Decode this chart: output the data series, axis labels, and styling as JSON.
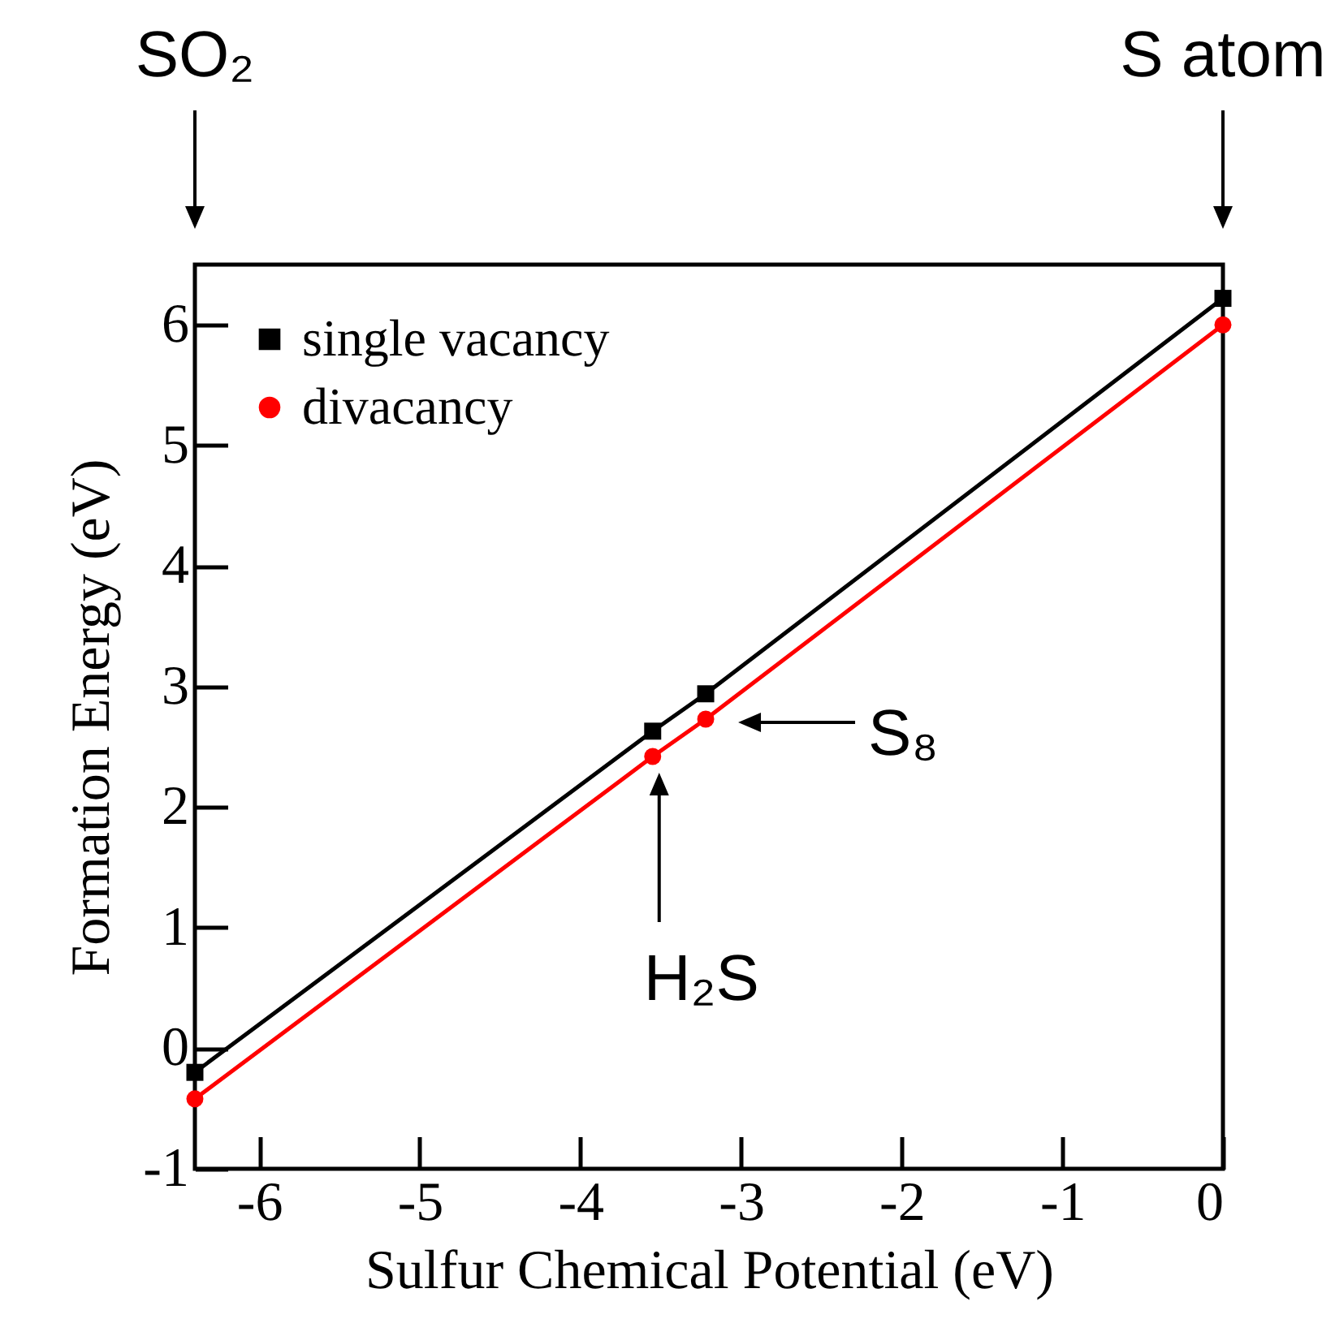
{
  "chart_data": {
    "type": "line",
    "xlabel": "Sulfur Chemical Potential (eV)",
    "ylabel": "Formation Energy (eV)",
    "x": [
      -6.4,
      -3.55,
      -3.22,
      0
    ],
    "series": [
      {
        "name": "single vacancy",
        "color": "#000000",
        "marker": "square",
        "values": [
          -0.2,
          2.63,
          2.94,
          6.22
        ]
      },
      {
        "name": "divacancy",
        "color": "#ff0000",
        "marker": "circle",
        "values": [
          -0.42,
          2.42,
          2.73,
          6.0
        ]
      }
    ],
    "xlim": [
      -6.4,
      0
    ],
    "xticks": [
      -6,
      -5,
      -4,
      -3,
      -2,
      -1,
      0
    ],
    "ylim": [
      -1,
      6.5
    ],
    "yticks": [
      -1,
      0,
      1,
      2,
      3,
      4,
      5,
      6
    ],
    "legend": "top left",
    "grid": false,
    "line_style": "solid",
    "annotations": [
      "SO₂",
      "S atom",
      {
        "text": "H₂S",
        "x": -3.55,
        "y": 2.42
      },
      {
        "text": "S₈",
        "x": -3.22,
        "y": 2.73
      }
    ]
  }
}
